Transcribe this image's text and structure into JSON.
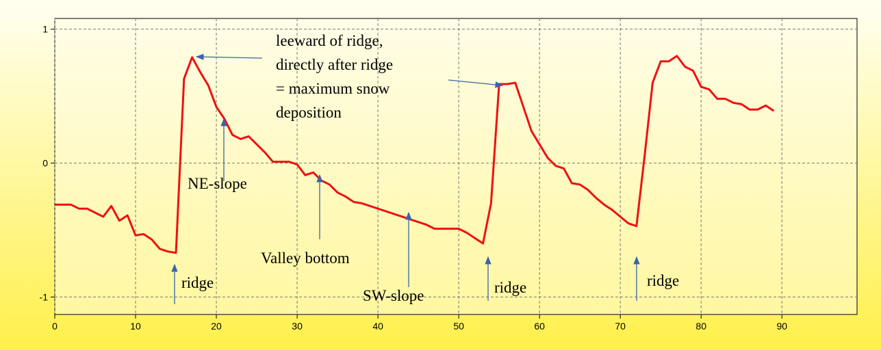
{
  "chart_data": {
    "type": "line",
    "x": [
      0,
      1,
      2,
      3,
      4,
      5,
      6,
      7,
      8,
      9,
      10,
      11,
      12,
      13,
      14,
      15,
      16,
      17,
      18,
      19,
      20,
      21,
      22,
      23,
      24,
      25,
      26,
      27,
      28,
      29,
      30,
      31,
      32,
      33,
      34,
      35,
      36,
      37,
      38,
      39,
      40,
      41,
      42,
      43,
      44,
      45,
      46,
      47,
      48,
      49,
      50,
      51,
      52,
      53,
      54,
      55,
      56,
      57,
      58,
      59,
      60,
      61,
      62,
      63,
      64,
      65,
      66,
      67,
      68,
      69,
      70,
      71,
      72,
      73,
      74,
      75,
      76,
      77,
      78,
      79,
      80,
      81,
      82,
      83,
      84,
      85,
      86,
      87,
      88,
      89
    ],
    "series": [
      {
        "color": "#ee1111",
        "values": [
          -0.31,
          -0.31,
          -0.31,
          -0.34,
          -0.34,
          -0.37,
          -0.4,
          -0.32,
          -0.43,
          -0.39,
          -0.54,
          -0.53,
          -0.57,
          -0.64,
          -0.66,
          -0.67,
          0.63,
          0.79,
          0.68,
          0.58,
          0.42,
          0.33,
          0.21,
          0.18,
          0.2,
          0.14,
          0.08,
          0.01,
          0.01,
          0.01,
          -0.01,
          -0.09,
          -0.07,
          -0.13,
          -0.16,
          -0.22,
          -0.25,
          -0.29,
          -0.3,
          -0.32,
          -0.34,
          -0.36,
          -0.38,
          -0.4,
          -0.42,
          -0.44,
          -0.46,
          -0.49,
          -0.49,
          -0.49,
          -0.49,
          -0.52,
          -0.56,
          -0.6,
          -0.3,
          0.59,
          0.59,
          0.6,
          0.42,
          0.24,
          0.14,
          0.04,
          -0.02,
          -0.04,
          -0.15,
          -0.16,
          -0.2,
          -0.26,
          -0.31,
          -0.35,
          -0.4,
          -0.45,
          -0.47,
          0.05,
          0.6,
          0.76,
          0.76,
          0.8,
          0.72,
          0.69,
          0.57,
          0.55,
          0.48,
          0.48,
          0.45,
          0.44,
          0.4,
          0.4,
          0.43,
          0.39
        ]
      }
    ],
    "xlim": [
      0,
      99.3
    ],
    "xticks": [
      0,
      10,
      20,
      30,
      40,
      50,
      60,
      70,
      80,
      90
    ],
    "ylim": [
      -1.13,
      1.08
    ],
    "yticks": [
      1,
      0,
      -1
    ],
    "grid": true,
    "annotations": [
      "leeward of ridge,",
      "directly after ridge",
      "= maximum snow",
      "deposition",
      "NE-slope",
      "Valley bottom",
      "SW-slope",
      "ridge",
      "ridge",
      "ridge"
    ]
  }
}
